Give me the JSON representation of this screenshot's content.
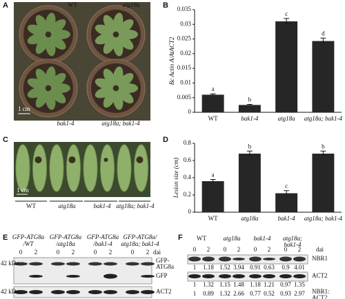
{
  "panels": [
    "A",
    "B",
    "C",
    "D",
    "E",
    "F"
  ],
  "photo_a": {
    "labels": [
      "WT",
      "atg18a",
      "bak1-4",
      "atg18a; bak1-4"
    ],
    "scale": "1 cm"
  },
  "photo_c": {
    "labels": [
      "WT",
      "atg18a",
      "bak1-4",
      "atg18a; bak1-4"
    ],
    "scale": "1 cm"
  },
  "chart_data": [
    {
      "type": "bar",
      "y_label": "Bc Actin A/AtACT2",
      "categories": [
        "WT",
        "bak1-4",
        "atg18a",
        "atg18a; bak1-4"
      ],
      "values": [
        0.006,
        0.0025,
        0.031,
        0.0243
      ],
      "errors": [
        0.0003,
        0.0002,
        0.001,
        0.001
      ],
      "letters": [
        "a",
        "b",
        "c",
        "d"
      ],
      "color": "#262626",
      "ylim": [
        0,
        0.035
      ],
      "yticks": [
        0,
        0.005,
        0.01,
        0.015,
        0.02,
        0.025,
        0.03,
        0.035
      ]
    },
    {
      "type": "bar",
      "y_label": "Lesion size (cm)",
      "categories": [
        "WT",
        "atg18a",
        "bak1-4",
        "atg18a; bak1-4"
      ],
      "values": [
        0.36,
        0.68,
        0.22,
        0.68
      ],
      "errors": [
        0.02,
        0.03,
        0.03,
        0.03
      ],
      "letters": [
        "a",
        "b",
        "c",
        "b"
      ],
      "color": "#262626",
      "ylim": [
        0,
        0.8
      ],
      "yticks": [
        0,
        0.2,
        0.4,
        0.6,
        0.8
      ]
    }
  ],
  "blot_e": {
    "headers": [
      [
        "GFP-ATG8a",
        "/WT"
      ],
      [
        "GFP-ATG8a",
        "/atg18a"
      ],
      [
        "GFP-ATG8a",
        "/bak1-4"
      ],
      [
        "GFP-ATG8a/",
        "atg18a; bak1-4"
      ]
    ],
    "dai_label": "dai",
    "lanes": [
      0,
      2,
      0,
      2,
      0,
      2,
      0,
      2
    ],
    "markers": [
      "42 kDa",
      "42 kDa"
    ],
    "bands": [
      [
        "GFP-",
        "ATG8a"
      ],
      [
        "GFP"
      ],
      [
        "ACT2"
      ]
    ]
  },
  "blot_f": {
    "headers": [
      [
        "WT"
      ],
      [
        "atg18a"
      ],
      [
        "bak1-4"
      ],
      [
        "atg18a;",
        "bak1-4"
      ]
    ],
    "dai_label": "dai",
    "lanes": [
      0,
      2,
      0,
      2,
      0,
      2,
      0,
      2
    ],
    "rows": [
      {
        "label": [
          "NBR1"
        ],
        "values": [
          1,
          1.18,
          1.52,
          3.94,
          0.91,
          0.63,
          0.9,
          4.01
        ]
      },
      {
        "label": [
          "ACT2"
        ],
        "values": [
          1,
          1.32,
          1.15,
          1.48,
          1.18,
          1.21,
          0.97,
          1.35
        ]
      },
      {
        "label": [
          "NBR1:",
          "ACT2"
        ],
        "values": [
          1,
          0.89,
          1.32,
          2.66,
          0.77,
          0.52,
          0.93,
          2.97
        ]
      }
    ]
  }
}
